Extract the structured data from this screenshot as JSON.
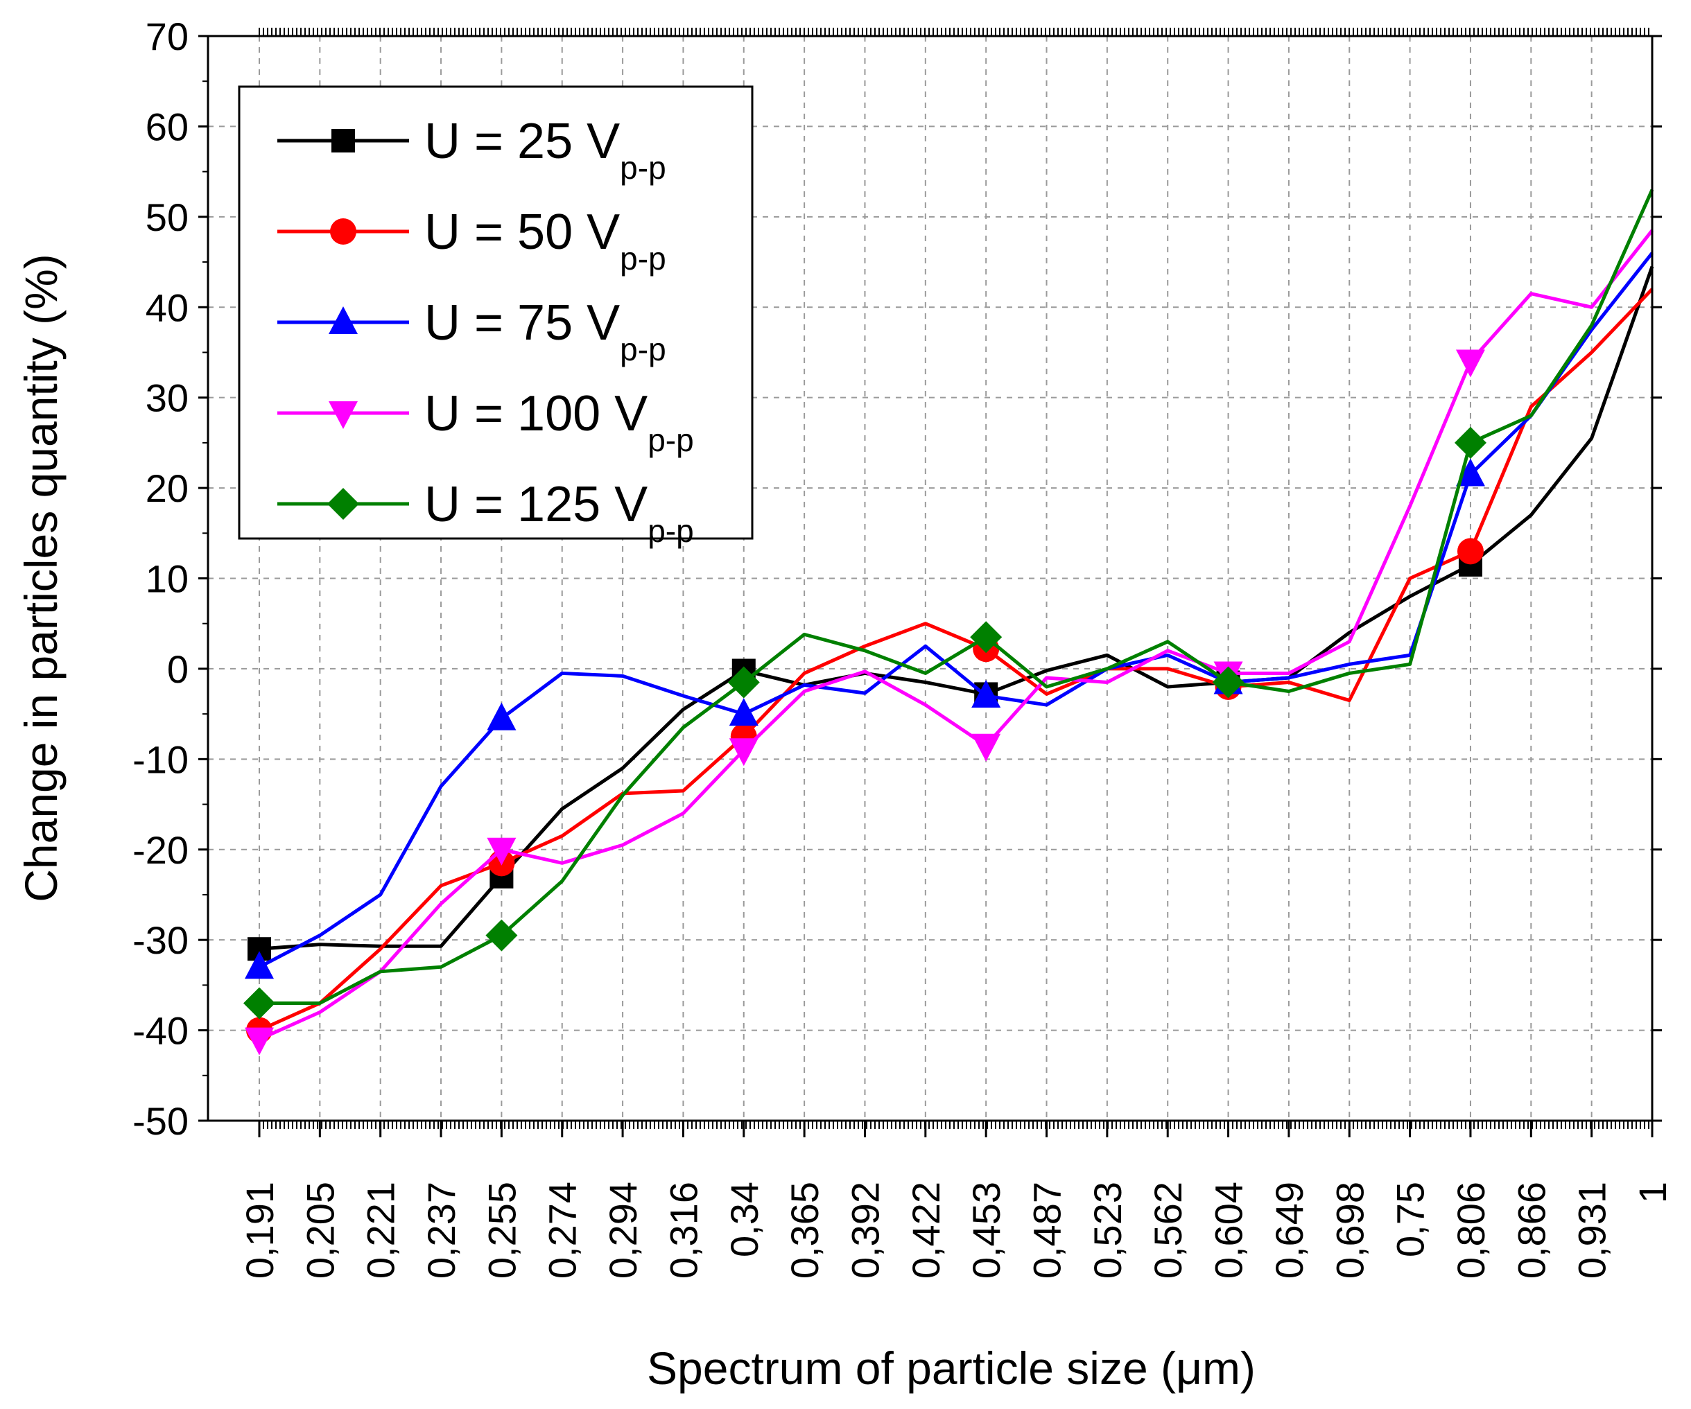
{
  "chart_data": {
    "type": "line",
    "title": "",
    "xlabel": "Spectrum of particle size (μm)",
    "ylabel": "Change in particles quantity (%)",
    "ylim": [
      -50,
      70
    ],
    "yticks": [
      -50,
      -40,
      -30,
      -20,
      -10,
      0,
      10,
      20,
      30,
      40,
      50,
      60,
      70
    ],
    "grid": true,
    "legend_position": "top-left",
    "categories": [
      "0,191",
      "0,205",
      "0,221",
      "0,237",
      "0,255",
      "0,274",
      "0,294",
      "0,316",
      "0,34",
      "0,365",
      "0,392",
      "0,422",
      "0,453",
      "0,487",
      "0,523",
      "0,562",
      "0,604",
      "0,649",
      "0,698",
      "0,75",
      "0,806",
      "0,866",
      "0,931",
      "1"
    ],
    "series": [
      {
        "name": "U = 25 V",
        "subscript": "p-p",
        "color": "#000000",
        "marker": "square",
        "values": [
          -31,
          -30.5,
          -30.7,
          -30.7,
          -23,
          -15.5,
          -11,
          -4.5,
          -0.2,
          -1.8,
          -0.5,
          -1.5,
          -2.8,
          -0.2,
          1.5,
          -2,
          -1.5,
          -1,
          4,
          8,
          11.5,
          17,
          25.5,
          44.5
        ]
      },
      {
        "name": "U = 50 V",
        "subscript": "p-p",
        "color": "#ff0000",
        "marker": "circle",
        "values": [
          -40,
          -37,
          -31,
          -24,
          -21.5,
          -18.5,
          -13.8,
          -13.5,
          -7.5,
          -0.5,
          2.5,
          5,
          2.2,
          -2.8,
          0,
          0,
          -2,
          -1.5,
          -3.5,
          10,
          13,
          29,
          35,
          42
        ]
      },
      {
        "name": "U = 75 V",
        "subscript": "p-p",
        "color": "#0000ff",
        "marker": "triangle-up",
        "values": [
          -33,
          -29.5,
          -25,
          -13,
          -5.5,
          -0.5,
          -0.8,
          -3,
          -5,
          -1.8,
          -2.7,
          2.5,
          -3,
          -4,
          0,
          1.5,
          -1.5,
          -1,
          0.5,
          1.5,
          21.5,
          28,
          37.5,
          46
        ]
      },
      {
        "name": "U = 100 V",
        "subscript": "p-p",
        "color": "#ff00ff",
        "marker": "triangle-down",
        "values": [
          -41,
          -38,
          -33.5,
          -26,
          -20,
          -21.5,
          -19.5,
          -16,
          -9,
          -2.5,
          -0.3,
          -4,
          -8.5,
          -1,
          -1.5,
          2,
          -0.5,
          -0.5,
          3,
          18,
          34,
          41.5,
          40,
          48.5
        ]
      },
      {
        "name": "U = 125 V",
        "subscript": "p-p",
        "color": "#008000",
        "marker": "diamond",
        "values": [
          -37,
          -37,
          -33.5,
          -33,
          -29.5,
          -23.5,
          -14,
          -6.5,
          -1.5,
          3.8,
          2,
          -0.5,
          3.5,
          -2,
          0,
          3,
          -1.5,
          -2.5,
          -0.5,
          0.5,
          25,
          28,
          38,
          53
        ]
      }
    ],
    "marker_indices": [
      0,
      4,
      8,
      12,
      16,
      20
    ]
  }
}
